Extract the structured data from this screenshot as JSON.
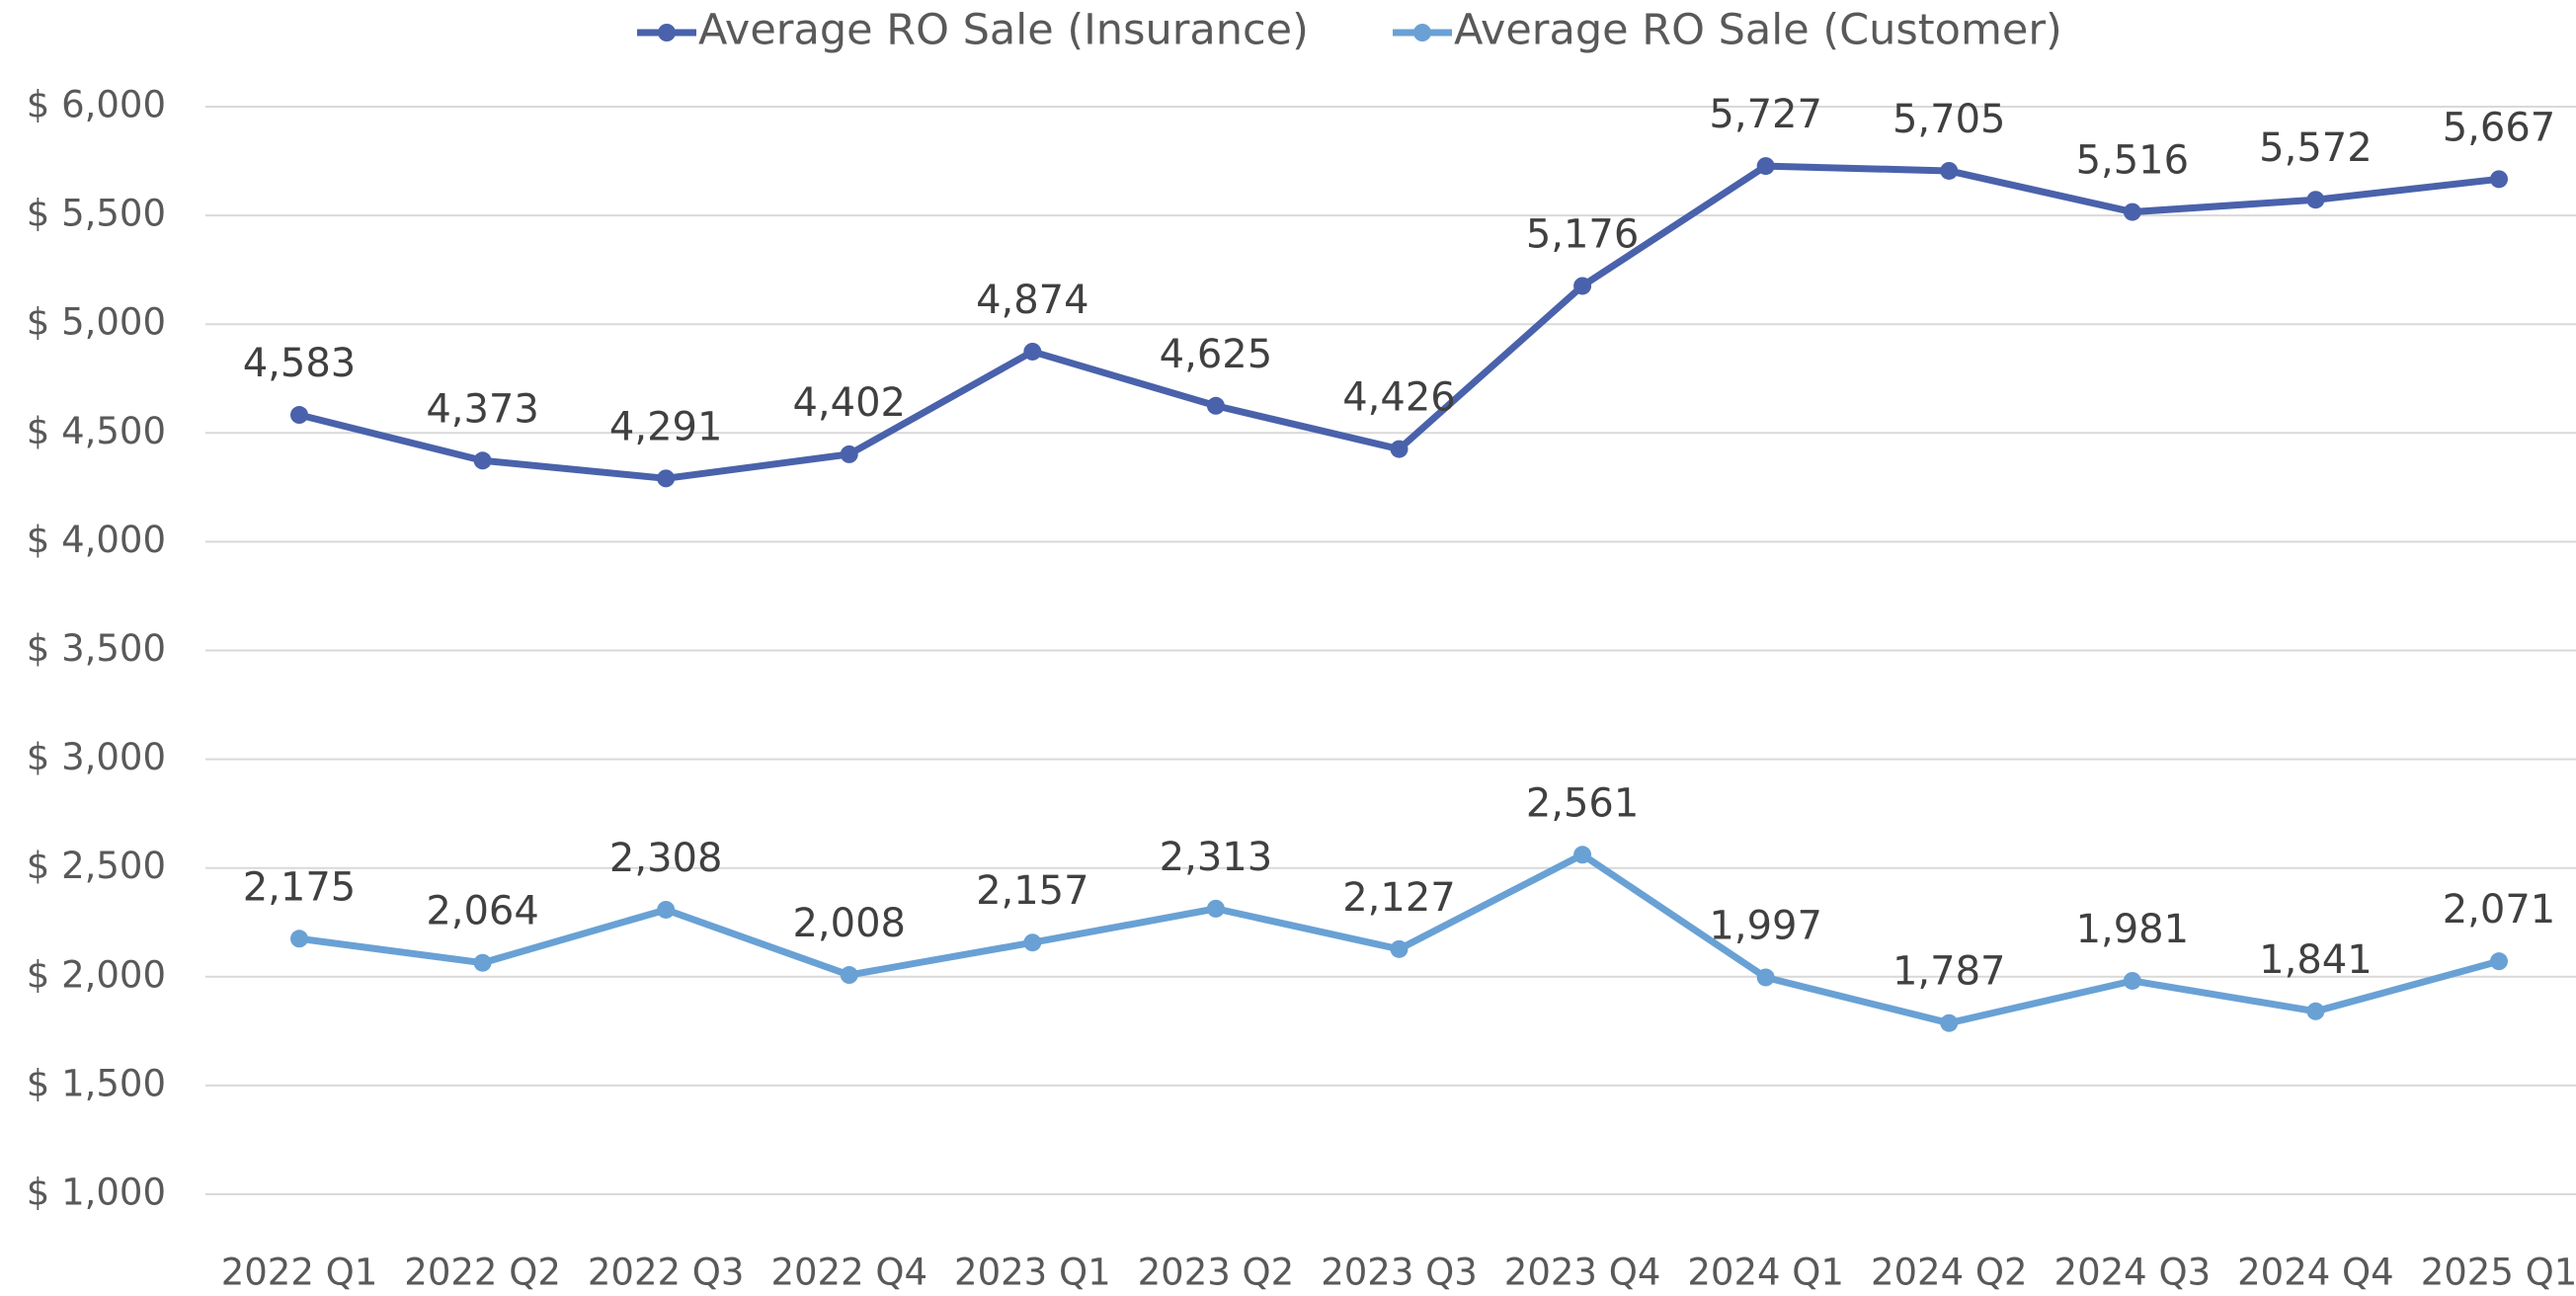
{
  "chart_data": {
    "type": "line",
    "categories": [
      "2022 Q1",
      "2022 Q2",
      "2022 Q3",
      "2022 Q4",
      "2023 Q1",
      "2023 Q2",
      "2023 Q3",
      "2023 Q4",
      "2024 Q1",
      "2024 Q2",
      "2024 Q3",
      "2024 Q4",
      "2025 Q1"
    ],
    "series": [
      {
        "name": "Average RO Sale (Insurance)",
        "color": "#4a62ab",
        "values": [
          4583,
          4373,
          4291,
          4402,
          4874,
          4625,
          4426,
          5176,
          5727,
          5705,
          5516,
          5572,
          5667
        ],
        "value_labels": [
          "4,583",
          "4,373",
          "4,291",
          "4,402",
          "4,874",
          "4,625",
          "4,426",
          "5,176",
          "5,727",
          "5,705",
          "5,516",
          "5,572",
          "5,667"
        ]
      },
      {
        "name": "Average RO Sale (Customer)",
        "color": "#69a1d5",
        "values": [
          2175,
          2064,
          2308,
          2008,
          2157,
          2313,
          2127,
          2561,
          1997,
          1787,
          1981,
          1841,
          2071
        ],
        "value_labels": [
          "2,175",
          "2,064",
          "2,308",
          "2,008",
          "2,157",
          "2,313",
          "2,127",
          "2,561",
          "1,997",
          "1,787",
          "1,981",
          "1,841",
          "2,071"
        ]
      }
    ],
    "ylim": [
      1000,
      6000
    ],
    "yticks": [
      {
        "value": 1000,
        "label": "$ 1,000"
      },
      {
        "value": 1500,
        "label": "$ 1,500"
      },
      {
        "value": 2000,
        "label": "$ 2,000"
      },
      {
        "value": 2500,
        "label": "$ 2,500"
      },
      {
        "value": 3000,
        "label": "$ 3,000"
      },
      {
        "value": 3500,
        "label": "$ 3,500"
      },
      {
        "value": 4000,
        "label": "$ 4,000"
      },
      {
        "value": 4500,
        "label": "$ 4,500"
      },
      {
        "value": 5000,
        "label": "$ 5,000"
      },
      {
        "value": 5500,
        "label": "$ 5,500"
      },
      {
        "value": 6000,
        "label": "$ 6,000"
      }
    ],
    "grid": true,
    "legend": "top"
  }
}
